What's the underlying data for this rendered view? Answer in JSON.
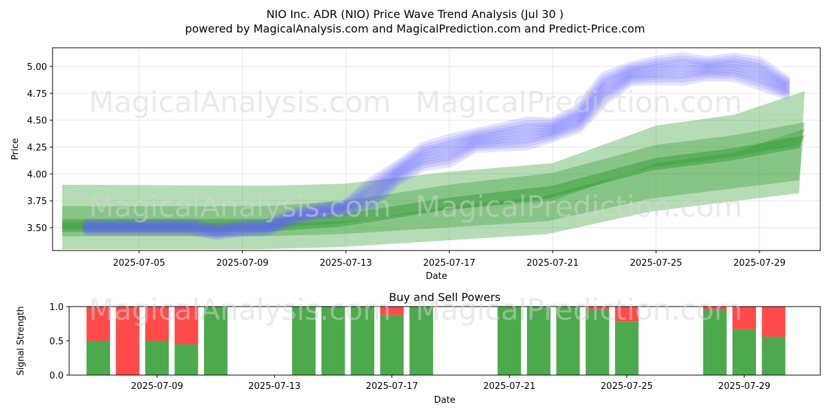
{
  "title": "NIO Inc. ADR (NIO) Price Wave Trend Analysis (Jul 30 )",
  "subtitle": "powered by MagicalAnalysis.com and MagicalPrediction.com and Predict-Price.com",
  "watermarks": [
    "MagicalAnalysis.com",
    "MagicalPrediction.com"
  ],
  "colors": {
    "price_wave": "#6464ff",
    "trend_band": "#2e9a2e",
    "buy": "#4caa4c",
    "sell": "#ff4a4a"
  },
  "chart_data": [
    {
      "type": "area",
      "xlabel": "Date",
      "ylabel": "Price",
      "x_ticks": [
        "2025-07-05",
        "2025-07-09",
        "2025-07-13",
        "2025-07-17",
        "2025-07-21",
        "2025-07-25",
        "2025-07-29"
      ],
      "y_ticks": [
        "3.50",
        "3.75",
        "4.00",
        "4.25",
        "4.50",
        "4.75",
        "5.00"
      ],
      "xlim": [
        "2025-07-02",
        "2025-07-31"
      ],
      "ylim": [
        3.28,
        5.18
      ],
      "grid": true,
      "series": [
        {
          "style": "blue price waves",
          "x": [
            "2025-07-03",
            "2025-07-04",
            "2025-07-05",
            "2025-07-06",
            "2025-07-07",
            "2025-07-08",
            "2025-07-09",
            "2025-07-10",
            "2025-07-11",
            "2025-07-12",
            "2025-07-13",
            "2025-07-14",
            "2025-07-15",
            "2025-07-16",
            "2025-07-17",
            "2025-07-18",
            "2025-07-19",
            "2025-07-20",
            "2025-07-21",
            "2025-07-22",
            "2025-07-23",
            "2025-07-24",
            "2025-07-25",
            "2025-07-26",
            "2025-07-27",
            "2025-07-28",
            "2025-07-29",
            "2025-07-30"
          ],
          "values": [
            3.5,
            3.5,
            3.5,
            3.5,
            3.5,
            3.46,
            3.49,
            3.5,
            3.6,
            3.65,
            3.68,
            3.8,
            4.0,
            4.15,
            4.2,
            4.3,
            4.33,
            4.36,
            4.4,
            4.5,
            4.78,
            4.92,
            4.95,
            4.96,
            4.97,
            4.98,
            4.92,
            4.8
          ]
        },
        {
          "style": "green trend band (upper)",
          "x": [
            "2025-07-02",
            "2025-07-10",
            "2025-07-13",
            "2025-07-17",
            "2025-07-21",
            "2025-07-25",
            "2025-07-28",
            "2025-07-30"
          ],
          "values": [
            3.9,
            3.89,
            3.91,
            4.02,
            4.1,
            4.45,
            4.55,
            4.77
          ]
        },
        {
          "style": "green trend band (center)",
          "x": [
            "2025-07-02",
            "2025-07-10",
            "2025-07-13",
            "2025-07-17",
            "2025-07-21",
            "2025-07-25",
            "2025-07-28",
            "2025-07-30"
          ],
          "values": [
            3.52,
            3.52,
            3.57,
            3.72,
            3.83,
            4.09,
            4.18,
            4.3
          ]
        },
        {
          "style": "green trend band (lower)",
          "x": [
            "2025-07-02",
            "2025-07-10",
            "2025-07-13",
            "2025-07-17",
            "2025-07-21",
            "2025-07-25",
            "2025-07-28",
            "2025-07-30"
          ],
          "values": [
            3.3,
            3.3,
            3.32,
            3.38,
            3.44,
            3.65,
            3.74,
            3.82
          ]
        }
      ]
    },
    {
      "type": "bar",
      "title": "Buy and Sell Powers",
      "xlabel": "Date",
      "ylabel": "Signal Strength",
      "x_ticks": [
        "2025-07-09",
        "2025-07-13",
        "2025-07-17",
        "2025-07-21",
        "2025-07-25",
        "2025-07-29"
      ],
      "y_ticks": [
        "0.0",
        "0.5",
        "1.0"
      ],
      "ylim": [
        0,
        1.0
      ],
      "categories": [
        "2025-07-07",
        "2025-07-08",
        "2025-07-09",
        "2025-07-10",
        "2025-07-11",
        "2025-07-14",
        "2025-07-15",
        "2025-07-16",
        "2025-07-17",
        "2025-07-18",
        "2025-07-21",
        "2025-07-22",
        "2025-07-23",
        "2025-07-24",
        "2025-07-25",
        "2025-07-28",
        "2025-07-29",
        "2025-07-30"
      ],
      "series": [
        {
          "values": [
            0.5,
            0.0,
            0.5,
            0.45,
            1.0,
            1.0,
            1.0,
            1.0,
            0.88,
            1.0,
            1.0,
            1.0,
            1.0,
            0.95,
            0.78,
            0.95,
            0.67,
            0.56
          ]
        },
        {
          "values": [
            0.5,
            1.0,
            0.5,
            0.55,
            0.0,
            0.0,
            0.0,
            0.0,
            0.12,
            0.0,
            0.0,
            0.0,
            0.0,
            0.05,
            0.22,
            0.05,
            0.33,
            0.44
          ]
        }
      ]
    }
  ]
}
